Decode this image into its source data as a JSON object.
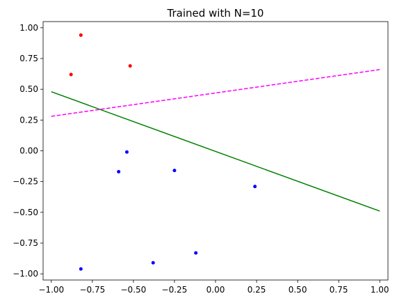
{
  "chart_data": {
    "type": "scatter",
    "title": "Trained with N=10",
    "xlabel": "",
    "ylabel": "",
    "xlim": [
      -1.05,
      1.05
    ],
    "ylim": [
      -1.05,
      1.05
    ],
    "x_ticks": [
      -1.0,
      -0.75,
      -0.5,
      -0.25,
      0.0,
      0.25,
      0.5,
      0.75,
      1.0
    ],
    "x_tick_labels": [
      "−1.00",
      "−0.75",
      "−0.50",
      "−0.25",
      "0.00",
      "0.25",
      "0.50",
      "0.75",
      "1.00"
    ],
    "y_ticks": [
      1.0,
      0.75,
      0.5,
      0.25,
      0.0,
      -0.25,
      -0.5,
      -0.75,
      -1.0
    ],
    "y_tick_labels": [
      "1.00",
      "0.75",
      "0.50",
      "0.25",
      "0.00",
      "−0.25",
      "−0.50",
      "−0.75",
      "−1.00"
    ],
    "grid": false,
    "series": [
      {
        "kind": "scatter",
        "color": "#ff0000",
        "points": [
          [
            -0.82,
            0.94
          ],
          [
            -0.88,
            0.62
          ],
          [
            -0.52,
            0.69
          ]
        ]
      },
      {
        "kind": "scatter",
        "color": "#0000ff",
        "points": [
          [
            -0.54,
            -0.01
          ],
          [
            -0.59,
            -0.17
          ],
          [
            -0.25,
            -0.16
          ],
          [
            0.24,
            -0.29
          ],
          [
            -0.12,
            -0.83
          ],
          [
            -0.38,
            -0.91
          ],
          [
            -0.82,
            -0.96
          ]
        ]
      },
      {
        "kind": "line",
        "color": "#008000",
        "style": "solid",
        "points": [
          [
            -1.0,
            0.48
          ],
          [
            1.0,
            -0.49
          ]
        ]
      },
      {
        "kind": "line",
        "color": "#ff00ff",
        "style": "dashed",
        "points": [
          [
            -1.0,
            0.28
          ],
          [
            1.0,
            0.66
          ]
        ]
      }
    ]
  }
}
